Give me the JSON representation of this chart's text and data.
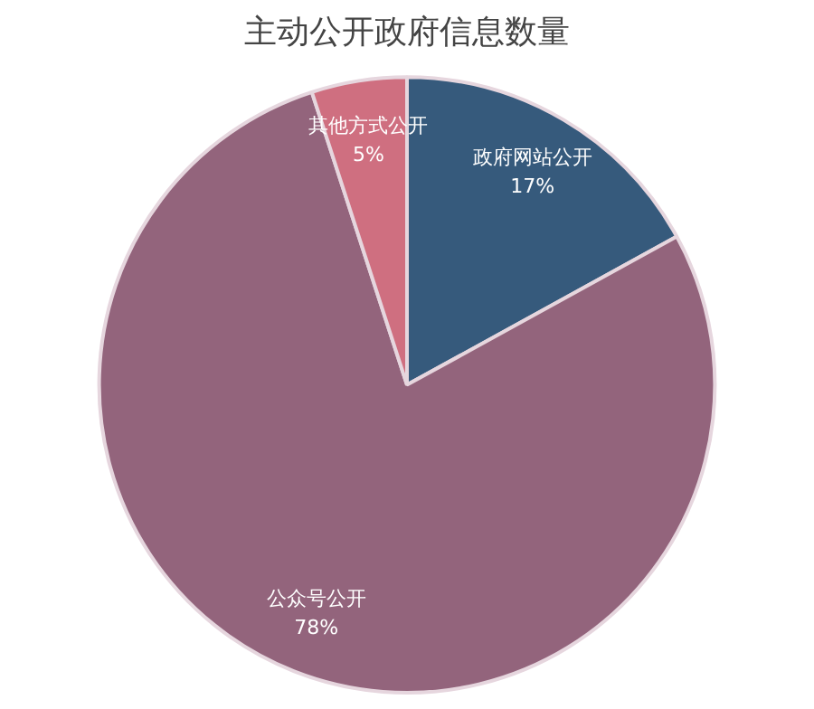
{
  "chart_data": {
    "type": "pie",
    "title": "主动公开政府信息数量",
    "categories": [
      "政府网站公开",
      "公众号公开",
      "其他方式公开"
    ],
    "values": [
      17,
      78,
      5
    ],
    "colors": [
      "#365a7c",
      "#93647c",
      "#cf6f80"
    ],
    "value_labels": [
      "17%",
      "78%",
      "5%"
    ],
    "legend": false
  }
}
